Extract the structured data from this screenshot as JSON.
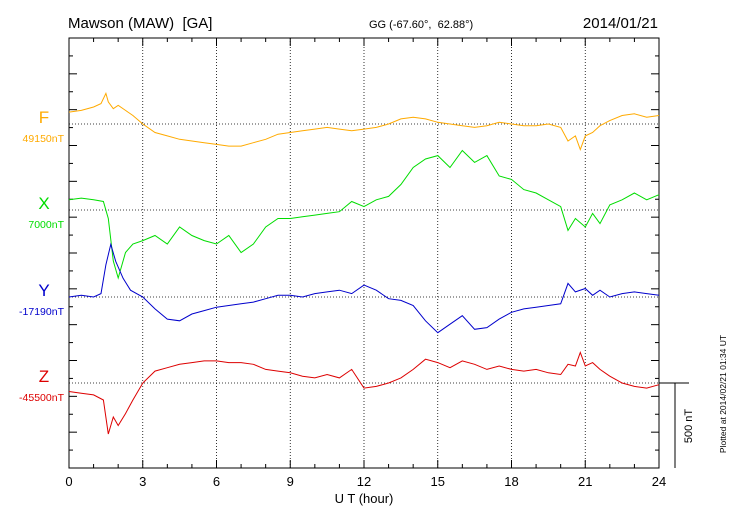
{
  "header": {
    "station": "Mawson (MAW)  [GA]",
    "coords": "GG (-67.60°,  62.88°)",
    "date": "2014/01/21"
  },
  "side_note": "Plotted at 2014/02/21 01:34 UT",
  "colors": {
    "F": "#ffaa00",
    "X": "#00dd00",
    "Y": "#0000cc",
    "Z": "#dd0000",
    "axis": "#000000"
  },
  "chart_data": {
    "type": "line",
    "xlabel": "U T (hour)",
    "xlim": [
      0,
      24
    ],
    "x_ticks": [
      0,
      3,
      6,
      9,
      12,
      15,
      18,
      21,
      24
    ],
    "scale_bar_label": "500 nT",
    "y_span_nT": 1000,
    "series": [
      {
        "name": "F",
        "baseline_label": "49150nT",
        "baseline": 49150,
        "x": [
          0,
          0.5,
          1.0,
          1.3,
          1.5,
          1.6,
          1.8,
          2.0,
          2.3,
          2.6,
          3.0,
          3.5,
          4.0,
          4.5,
          5.0,
          5.5,
          6.0,
          6.5,
          7.0,
          7.5,
          8.0,
          8.5,
          9.0,
          9.5,
          10.0,
          10.5,
          11.0,
          11.5,
          12.0,
          12.5,
          13.0,
          13.5,
          14.0,
          14.5,
          15.0,
          15.5,
          16.0,
          16.5,
          17.0,
          17.5,
          18.0,
          18.5,
          19.0,
          19.5,
          20.0,
          20.3,
          20.6,
          20.8,
          21.0,
          21.3,
          21.6,
          22.0,
          22.5,
          23.0,
          23.5,
          24.0
        ],
        "y": [
          49220,
          49230,
          49250,
          49270,
          49330,
          49280,
          49240,
          49260,
          49230,
          49200,
          49150,
          49100,
          49080,
          49060,
          49050,
          49040,
          49030,
          49020,
          49020,
          49040,
          49060,
          49090,
          49100,
          49110,
          49120,
          49130,
          49120,
          49110,
          49120,
          49130,
          49150,
          49180,
          49190,
          49180,
          49160,
          49150,
          49140,
          49130,
          49140,
          49160,
          49150,
          49140,
          49140,
          49150,
          49130,
          49050,
          49080,
          49000,
          49080,
          49100,
          49140,
          49170,
          49200,
          49210,
          49190,
          49200
        ]
      },
      {
        "name": "X",
        "baseline_label": "7000nT",
        "baseline": 7000,
        "x": [
          0,
          0.5,
          1.0,
          1.4,
          1.6,
          1.8,
          2.0,
          2.3,
          2.6,
          3.0,
          3.5,
          4.0,
          4.5,
          5.0,
          5.5,
          6.0,
          6.5,
          7.0,
          7.5,
          8.0,
          8.5,
          9.0,
          9.5,
          10.0,
          10.5,
          11.0,
          11.5,
          12.0,
          12.5,
          13.0,
          13.5,
          14.0,
          14.5,
          15.0,
          15.5,
          16.0,
          16.5,
          17.0,
          17.5,
          18.0,
          18.5,
          19.0,
          19.5,
          20.0,
          20.3,
          20.6,
          21.0,
          21.3,
          21.6,
          22.0,
          22.5,
          23.0,
          23.5,
          24.0
        ],
        "y": [
          7060,
          7070,
          7060,
          7050,
          6950,
          6700,
          6600,
          6750,
          6800,
          6820,
          6850,
          6800,
          6900,
          6850,
          6820,
          6800,
          6850,
          6750,
          6800,
          6900,
          6950,
          6950,
          6960,
          6970,
          6980,
          6990,
          7050,
          7020,
          7060,
          7080,
          7150,
          7250,
          7300,
          7320,
          7250,
          7350,
          7280,
          7320,
          7200,
          7180,
          7120,
          7100,
          7060,
          7020,
          6880,
          6950,
          6900,
          6980,
          6920,
          7030,
          7060,
          7100,
          7060,
          7090
        ]
      },
      {
        "name": "Y",
        "baseline_label": "-17190nT",
        "baseline": -17190,
        "x": [
          0,
          0.5,
          1.0,
          1.3,
          1.5,
          1.7,
          1.9,
          2.2,
          2.5,
          3.0,
          3.5,
          4.0,
          4.5,
          5.0,
          5.5,
          6.0,
          6.5,
          7.0,
          7.5,
          8.0,
          8.5,
          9.0,
          9.5,
          10.0,
          10.5,
          11.0,
          11.5,
          12.0,
          12.5,
          13.0,
          13.5,
          14.0,
          14.5,
          15.0,
          15.5,
          16.0,
          16.5,
          17.0,
          17.5,
          18.0,
          18.5,
          19.0,
          19.5,
          20.0,
          20.3,
          20.6,
          21.0,
          21.3,
          21.6,
          22.0,
          22.5,
          23.0,
          23.5,
          24.0
        ],
        "y": [
          -17190,
          -17180,
          -17190,
          -17170,
          -17000,
          -16880,
          -16980,
          -17080,
          -17150,
          -17190,
          -17260,
          -17320,
          -17330,
          -17290,
          -17270,
          -17250,
          -17240,
          -17230,
          -17220,
          -17200,
          -17180,
          -17180,
          -17190,
          -17170,
          -17160,
          -17150,
          -17170,
          -17120,
          -17150,
          -17200,
          -17210,
          -17240,
          -17330,
          -17400,
          -17350,
          -17300,
          -17380,
          -17370,
          -17320,
          -17280,
          -17260,
          -17250,
          -17240,
          -17230,
          -17110,
          -17160,
          -17140,
          -17180,
          -17150,
          -17190,
          -17170,
          -17160,
          -17170,
          -17180
        ]
      },
      {
        "name": "Z",
        "baseline_label": "-45500nT",
        "baseline": -45500,
        "x": [
          0,
          0.5,
          1.0,
          1.4,
          1.6,
          1.8,
          2.0,
          2.3,
          2.6,
          3.0,
          3.5,
          4.0,
          4.5,
          5.0,
          5.5,
          6.0,
          6.5,
          7.0,
          7.5,
          8.0,
          8.5,
          9.0,
          9.5,
          10.0,
          10.5,
          11.0,
          11.5,
          12.0,
          12.5,
          13.0,
          13.5,
          14.0,
          14.5,
          15.0,
          15.5,
          16.0,
          16.5,
          17.0,
          17.5,
          18.0,
          18.5,
          19.0,
          19.5,
          20.0,
          20.3,
          20.6,
          20.8,
          21.0,
          21.3,
          21.6,
          22.0,
          22.5,
          23.0,
          23.5,
          24.0
        ],
        "y": [
          -45550,
          -45560,
          -45570,
          -45600,
          -45800,
          -45700,
          -45750,
          -45680,
          -45600,
          -45500,
          -45430,
          -45410,
          -45390,
          -45380,
          -45370,
          -45370,
          -45380,
          -45380,
          -45390,
          -45420,
          -45430,
          -45440,
          -45460,
          -45470,
          -45450,
          -45470,
          -45420,
          -45530,
          -45520,
          -45500,
          -45470,
          -45420,
          -45360,
          -45380,
          -45410,
          -45370,
          -45390,
          -45420,
          -45400,
          -45420,
          -45430,
          -45420,
          -45440,
          -45450,
          -45390,
          -45400,
          -45320,
          -45400,
          -45380,
          -45420,
          -45460,
          -45500,
          -45520,
          -45530,
          -45510
        ]
      }
    ]
  }
}
